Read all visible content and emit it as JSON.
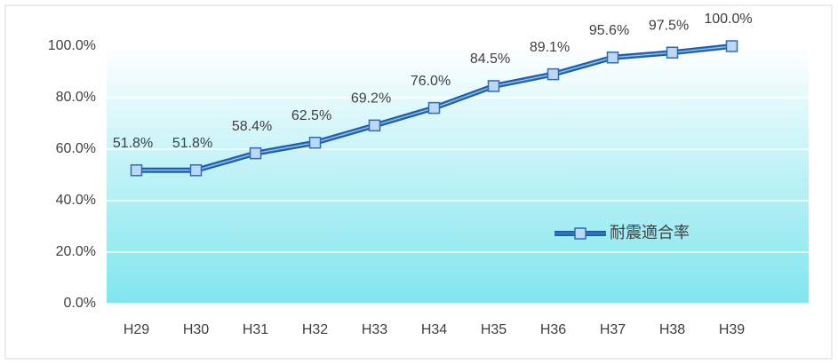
{
  "chart_data": {
    "type": "line",
    "categories": [
      "H29",
      "H30",
      "H31",
      "H32",
      "H33",
      "H34",
      "H35",
      "H36",
      "H37",
      "H38",
      "H39"
    ],
    "series": [
      {
        "name": "耐震適合率",
        "color": "#2e75c8",
        "values": [
          51.8,
          51.8,
          58.4,
          62.5,
          69.2,
          76.0,
          84.5,
          89.1,
          95.6,
          97.5,
          100.0
        ],
        "value_labels": [
          "51.8%",
          "51.8%",
          "58.4%",
          "62.5%",
          "69.2%",
          "76.0%",
          "84.5%",
          "89.1%",
          "95.6%",
          "97.5%",
          "100.0%"
        ]
      }
    ],
    "ylim": [
      0,
      100
    ],
    "yticks": [
      {
        "value": 0,
        "label": "0.0%"
      },
      {
        "value": 20,
        "label": "20.0%"
      },
      {
        "value": 40,
        "label": "40.0%"
      },
      {
        "value": 60,
        "label": "60.0%"
      },
      {
        "value": 80,
        "label": "80.0%"
      },
      {
        "value": 100,
        "label": "100.0%"
      }
    ],
    "grid": true,
    "legend": "right"
  }
}
